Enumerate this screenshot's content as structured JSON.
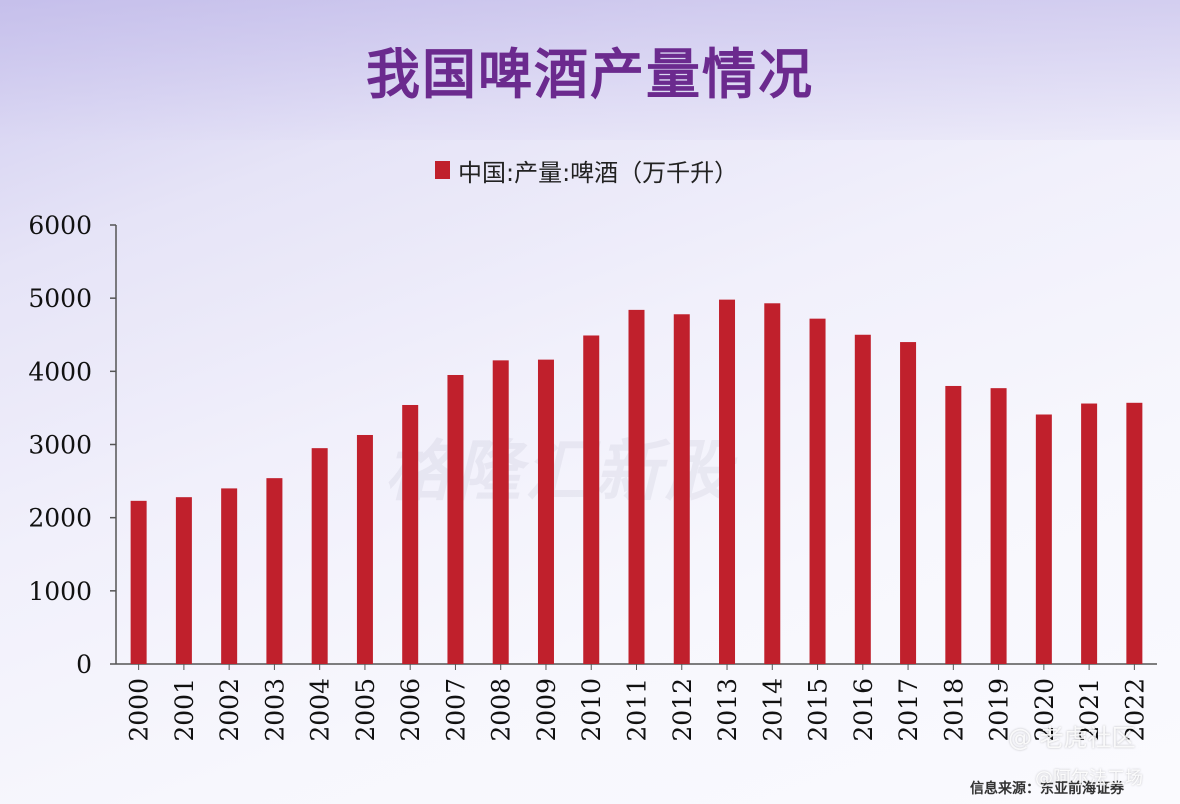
{
  "chart_data": {
    "type": "bar",
    "title": "我国啤酒产量情况",
    "categories": [
      "2000",
      "2001",
      "2002",
      "2003",
      "2004",
      "2005",
      "2006",
      "2007",
      "2008",
      "2009",
      "2010",
      "2011",
      "2012",
      "2013",
      "2014",
      "2015",
      "2016",
      "2017",
      "2018",
      "2019",
      "2020",
      "2021",
      "2022"
    ],
    "series": [
      {
        "name": "中国:产量:啤酒（万千升）",
        "values": [
          2230,
          2280,
          2400,
          2540,
          2950,
          3130,
          3540,
          3950,
          4150,
          4160,
          4490,
          4840,
          4780,
          4980,
          4930,
          4720,
          4500,
          4400,
          3800,
          3770,
          3410,
          3560,
          3570
        ],
        "color": "#c0202c"
      }
    ],
    "ylim": [
      0,
      6000
    ],
    "yticks": [
      0,
      1000,
      2000,
      3000,
      4000,
      5000,
      6000
    ],
    "xlabel": "",
    "ylabel": "",
    "grid": false,
    "legend_position": "top-center"
  },
  "source": "信息来源：东亚前海证券",
  "watermarks": {
    "center": "格隆汇新股",
    "community": "@ 老虎社区",
    "author": "@阿尔法工场"
  }
}
